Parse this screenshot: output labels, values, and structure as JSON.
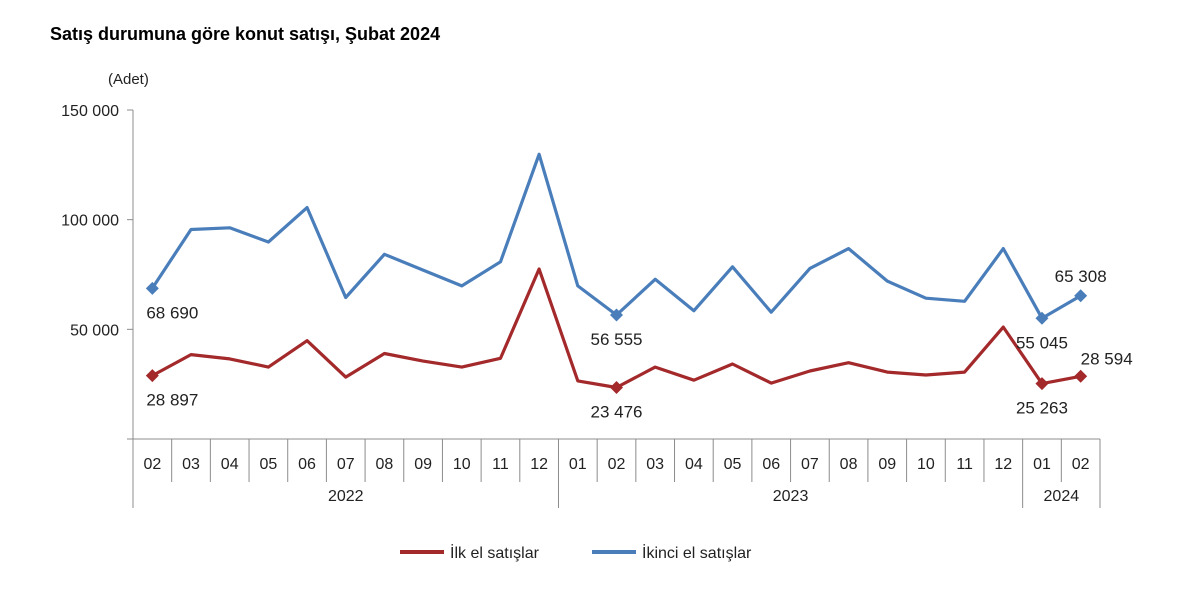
{
  "chart_data": {
    "type": "line",
    "title": "Satış durumuna göre konut satışı, Şubat 2024",
    "ylabel": "(Adet)",
    "ylim": [
      0,
      150000
    ],
    "yticks": [
      {
        "value": 50000,
        "label": "50 000"
      },
      {
        "value": 100000,
        "label": "100 000"
      },
      {
        "value": 150000,
        "label": "150 000"
      }
    ],
    "categories": [
      "02",
      "03",
      "04",
      "05",
      "06",
      "07",
      "08",
      "09",
      "10",
      "11",
      "12",
      "01",
      "02",
      "03",
      "04",
      "05",
      "06",
      "07",
      "08",
      "09",
      "10",
      "11",
      "12",
      "01",
      "02"
    ],
    "year_groups": [
      {
        "label": "2022",
        "start": 0,
        "end": 10
      },
      {
        "label": "2023",
        "start": 11,
        "end": 22
      },
      {
        "label": "2024",
        "start": 23,
        "end": 24
      }
    ],
    "series": [
      {
        "name": "İlk el satışlar",
        "color": "#a3292b",
        "values": [
          28897,
          38500,
          36500,
          32800,
          44800,
          28200,
          39000,
          35500,
          32800,
          36800,
          77500,
          26500,
          23476,
          32800,
          26800,
          34200,
          25500,
          31000,
          34800,
          30500,
          29200,
          30500,
          51000,
          25263,
          28594
        ],
        "markers": [
          0,
          12,
          23,
          24
        ],
        "labels": [
          {
            "index": 0,
            "text": "28 897",
            "pos": "below"
          },
          {
            "index": 12,
            "text": "23 476",
            "pos": "below"
          },
          {
            "index": 23,
            "text": "25 263",
            "pos": "below"
          },
          {
            "index": 24,
            "text": "28 594",
            "pos": "above-right"
          }
        ]
      },
      {
        "name": "İkinci el satışlar",
        "color": "#4a7ebb",
        "values": [
          68690,
          95500,
          96300,
          89800,
          105500,
          64500,
          84200,
          77000,
          69800,
          80800,
          129800,
          69800,
          56555,
          72800,
          58500,
          78500,
          57800,
          77800,
          86800,
          72000,
          64200,
          62800,
          86800,
          55045,
          65308
        ],
        "markers": [
          0,
          12,
          23,
          24
        ],
        "labels": [
          {
            "index": 0,
            "text": "68 690",
            "pos": "below"
          },
          {
            "index": 12,
            "text": "56 555",
            "pos": "below"
          },
          {
            "index": 23,
            "text": "55 045",
            "pos": "below"
          },
          {
            "index": 24,
            "text": "65 308",
            "pos": "above"
          }
        ]
      }
    ],
    "legend": [
      "İlk el satışlar",
      "İkinci el satışlar"
    ]
  }
}
